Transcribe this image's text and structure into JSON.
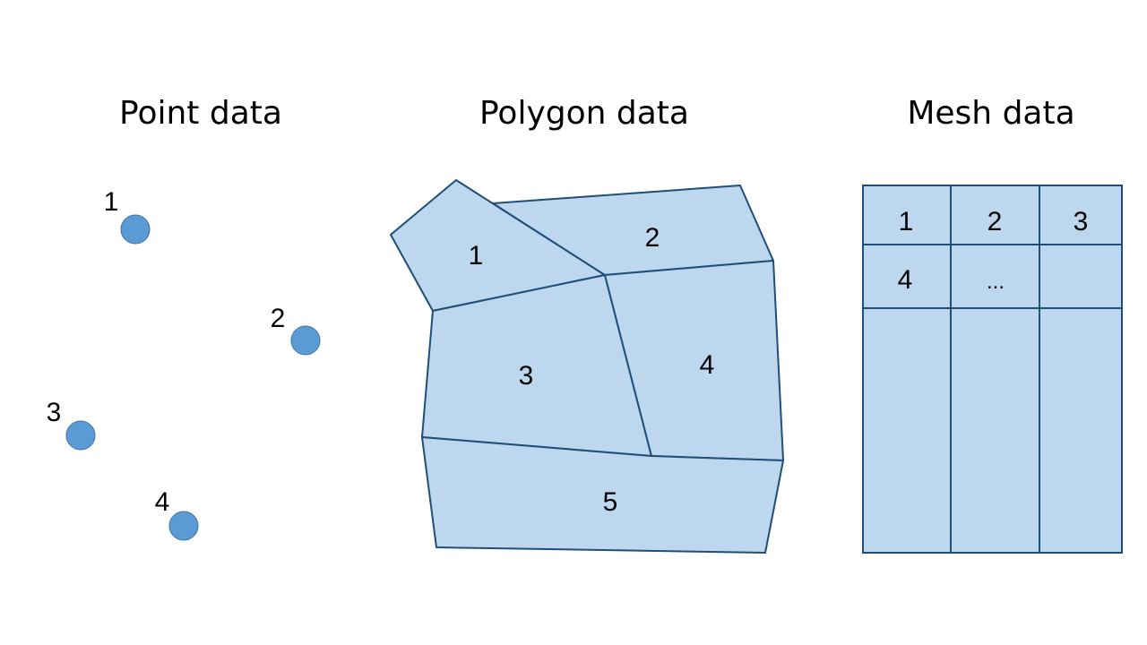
{
  "colors": {
    "point_fill": "#5b9bd5",
    "point_stroke": "#41719c",
    "shape_fill": "#bdd7ee",
    "shape_stroke": "#1f4e79"
  },
  "point_panel": {
    "title": "Point data",
    "points": [
      {
        "label": "1"
      },
      {
        "label": "2"
      },
      {
        "label": "3"
      },
      {
        "label": "4"
      }
    ]
  },
  "polygon_panel": {
    "title": "Polygon data",
    "polygons": [
      {
        "label": "1"
      },
      {
        "label": "2"
      },
      {
        "label": "3"
      },
      {
        "label": "4"
      },
      {
        "label": "5"
      }
    ]
  },
  "mesh_panel": {
    "title": "Mesh data",
    "cells": [
      [
        "1",
        "2",
        "3"
      ],
      [
        "4",
        "...",
        ""
      ],
      [
        "",
        "",
        ""
      ]
    ]
  }
}
